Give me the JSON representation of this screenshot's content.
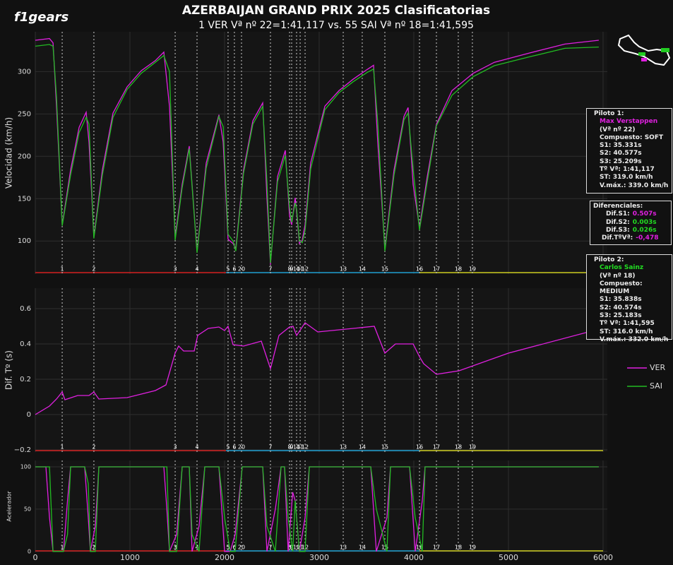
{
  "logo": "f1gears",
  "chart_data": [
    {
      "type": "line",
      "title": "AZERBAIJAN GRAND PRIX 2025 Clasificatorias",
      "subtitle": "1 VER Vª nº  22=1:41,117 vs. 55 SAI Vª nº  18=1:41,595",
      "ylabel": "Velocidad (km/h)",
      "xlim": [
        0,
        6045
      ],
      "ylim": [
        61,
        347
      ],
      "yticks": [
        100,
        150,
        200,
        250,
        300
      ],
      "grid": true,
      "x": [
        0,
        149,
        187,
        224,
        284,
        373,
        463,
        537,
        567,
        619,
        709,
        821,
        970,
        1119,
        1269,
        1358,
        1418,
        1478,
        1552,
        1627,
        1709,
        1806,
        1940,
        1985,
        2037,
        2090,
        2119,
        2201,
        2299,
        2403,
        2448,
        2485,
        2560,
        2642,
        2687,
        2709,
        2746,
        2761,
        2791,
        2821,
        2851,
        2910,
        3060,
        3209,
        3358,
        3507,
        3575,
        3619,
        3694,
        3791,
        3896,
        3940,
        3993,
        4060,
        4142,
        4239,
        4403,
        4627,
        4851,
        5224,
        5597,
        5955
      ],
      "series": [
        {
          "name": "VER",
          "color": "#e020e0",
          "values": [
            337,
            339,
            334,
            259,
            119,
            184,
            234,
            252,
            217,
            105,
            184,
            251,
            282,
            301,
            313,
            323,
            259,
            105,
            167,
            212,
            87.5,
            192,
            249,
            217,
            102,
            97,
            91,
            184,
            242,
            263,
            151,
            72,
            176,
            207,
            130,
            119,
            151,
            134,
            97,
            101,
            119,
            192,
            259,
            277.5,
            291,
            302.5,
            307.5,
            217,
            91,
            184,
            247,
            257.5,
            167,
            116,
            176,
            238,
            277.5,
            298,
            311,
            322,
            332.5,
            337
          ]
        },
        {
          "name": "SAI",
          "color": "#22bb22",
          "values": [
            330,
            332,
            330,
            270,
            118,
            178,
            228,
            246,
            238,
            103,
            178,
            246,
            279,
            298,
            311,
            319,
            300,
            101,
            163,
            209,
            86,
            186,
            247,
            235,
            108,
            100,
            88,
            180,
            238,
            259,
            170,
            74,
            170,
            201,
            140,
            122,
            145,
            138,
            100,
            98,
            112,
            185,
            255,
            275,
            288,
            299,
            303,
            240,
            88,
            178,
            243,
            251,
            185,
            113,
            170,
            236,
            272,
            294,
            307,
            317.5,
            327.5,
            329
          ]
        }
      ],
      "legend": "right",
      "corners": {
        "labels": [
          "1",
          "2",
          "3",
          "4",
          "5",
          "6",
          "20",
          "7",
          "8",
          "9",
          "10",
          "11",
          "12",
          "13",
          "14",
          "15",
          "16",
          "17",
          "18",
          "19"
        ],
        "x": [
          284,
          619,
          1478,
          1709,
          2037,
          2104,
          2179,
          2485,
          2687,
          2709,
          2761,
          2799,
          2851,
          3254,
          3455,
          3694,
          4060,
          4239,
          4470,
          4619
        ]
      },
      "sectors": [
        {
          "start": 0,
          "end": 2015,
          "color": "#d42020"
        },
        {
          "start": 2015,
          "end": 4060,
          "color": "#1f9fd0"
        },
        {
          "start": 4060,
          "end": 6000,
          "color": "#cccc20"
        }
      ]
    },
    {
      "type": "line",
      "ylabel": "Dif. Tº (s)",
      "xlim": [
        0,
        6045
      ],
      "ylim": [
        -0.212,
        0.716
      ],
      "yticks": [
        {
          "value": -0.2,
          "label": "−0.2"
        },
        0,
        0.2,
        0.4,
        0.6
      ],
      "grid": true,
      "x": [
        0,
        149,
        224,
        284,
        313,
        448,
        567,
        619,
        672,
        970,
        1269,
        1381,
        1478,
        1515,
        1567,
        1679,
        1716,
        1828,
        1940,
        2000,
        2037,
        2090,
        2201,
        2388,
        2485,
        2575,
        2687,
        2724,
        2761,
        2851,
        2985,
        3582,
        3694,
        3806,
        3993,
        4060,
        4104,
        4239,
        4478,
        5000,
        5985
      ],
      "series": [
        {
          "name": "VER",
          "color": "#e020e0",
          "values": [
            0,
            0.048,
            0.088,
            0.128,
            0.084,
            0.108,
            0.108,
            0.128,
            0.088,
            0.096,
            0.136,
            0.168,
            0.348,
            0.388,
            0.36,
            0.36,
            0.448,
            0.488,
            0.496,
            0.476,
            0.5,
            0.396,
            0.388,
            0.416,
            0.26,
            0.448,
            0.496,
            0.5,
            0.448,
            0.52,
            0.468,
            0.5,
            0.348,
            0.4,
            0.4,
            0.328,
            0.288,
            0.228,
            0.248,
            0.348,
            0.488
          ]
        }
      ]
    },
    {
      "type": "line",
      "ylabel": "Acelerador",
      "xlim": [
        0,
        6045
      ],
      "ylim": [
        -1,
        107.5
      ],
      "yticks": [
        0,
        50,
        100
      ],
      "grid": true,
      "xticks": [
        0,
        1000,
        2000,
        3000,
        4000,
        5000,
        6000
      ],
      "x": [
        0,
        112,
        150,
        187,
        298,
        340,
        373,
        522,
        560,
        582,
        634,
        672,
        1358,
        1390,
        1418,
        1493,
        1552,
        1627,
        1657,
        1731,
        1791,
        1940,
        2000,
        2060,
        2112,
        2187,
        2403,
        2448,
        2537,
        2597,
        2634,
        2672,
        2720,
        2746,
        2791,
        2851,
        2896,
        3545,
        3604,
        3716,
        3754,
        3955,
        4015,
        4090,
        4119,
        5955
      ],
      "series": [
        {
          "name": "VER",
          "color": "#e020e0",
          "values": [
            100,
            100,
            40,
            0,
            0,
            60,
            100,
            100,
            40,
            0,
            30,
            100,
            100,
            50,
            0,
            20,
            100,
            100,
            0,
            30,
            100,
            100,
            0,
            0,
            20,
            100,
            100,
            0,
            50,
            100,
            100,
            0,
            70,
            60,
            0,
            40,
            100,
            100,
            0,
            40,
            100,
            100,
            0,
            60,
            100,
            100
          ]
        },
        {
          "name": "SAI",
          "color": "#22bb22",
          "values": [
            100,
            100,
            100,
            0,
            0,
            20,
            100,
            100,
            80,
            0,
            0,
            100,
            100,
            100,
            0,
            0,
            100,
            100,
            20,
            0,
            100,
            100,
            40,
            0,
            0,
            100,
            100,
            30,
            0,
            100,
            100,
            40,
            0,
            60,
            0,
            0,
            100,
            100,
            50,
            0,
            100,
            100,
            40,
            0,
            100,
            100
          ]
        }
      ]
    }
  ],
  "info_boxes": {
    "driver1": {
      "heading": "Piloto 1:",
      "name": "Max Verstappen",
      "color": "#e020e0",
      "lines": [
        "(Vª nº 22)",
        "Compuesto: SOFT",
        "S1: 35.331s",
        "S2: 40.577s",
        "S3: 25.209s",
        "Tº Vª: 1:41,117",
        "ST: 319.0 km/h",
        "V.máx.: 339.0 km/h"
      ]
    },
    "differentials": {
      "heading": "Diferenciales:",
      "rows": [
        {
          "label": "Dif.S1:",
          "value": "0.507s",
          "color": "#e020e0"
        },
        {
          "label": "Dif.S2:",
          "value": "0.003s",
          "color": "#22dd22"
        },
        {
          "label": "Dif.S3:",
          "value": "0.026s",
          "color": "#22dd22"
        },
        {
          "label": "Dif.TºVª:",
          "value": "-0,478",
          "color": "#e020e0"
        }
      ]
    },
    "driver2": {
      "heading": "Piloto 2:",
      "name": "Carlos Sainz",
      "color": "#22dd22",
      "lines": [
        "(Vª nº 18)",
        "Compuesto: MEDIUM",
        "S1: 35.838s",
        "S2: 40.574s",
        "S3: 25.183s",
        "Tº Vª: 1:41,595",
        "ST: 316.0 km/h",
        "V.máx.: 332.0 km/h"
      ]
    }
  }
}
